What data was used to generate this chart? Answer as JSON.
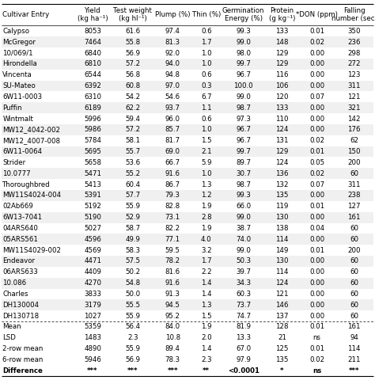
{
  "headers": [
    "Cultivar Entry",
    "Yield\n(kg ha⁻¹)",
    "Test weight\n(kg hl⁻¹)",
    "Plump (%)",
    "Thin (%)",
    "Germination\nEnergy (%)",
    "Protein\n(g kg⁻¹)",
    "*DON (ppm)",
    "Falling\nnumber (sec)"
  ],
  "rows": [
    [
      "Calypso",
      "8053",
      "61.6",
      "97.4",
      "0.6",
      "99.3",
      "133",
      "0.01",
      "350"
    ],
    [
      "McGregor",
      "7464",
      "55.8",
      "81.3",
      "1.7",
      "99.0",
      "148",
      "0.02",
      "236"
    ],
    [
      "10/069/1",
      "6840",
      "56.9",
      "92.0",
      "1.0",
      "98.0",
      "129",
      "0.00",
      "298"
    ],
    [
      "Hirondella",
      "6810",
      "57.2",
      "94.0",
      "1.0",
      "99.7",
      "129",
      "0.00",
      "272"
    ],
    [
      "Vincenta",
      "6544",
      "56.8",
      "94.8",
      "0.6",
      "96.7",
      "116",
      "0.00",
      "123"
    ],
    [
      "SU-Mateo",
      "6392",
      "60.8",
      "97.0",
      "0.3",
      "100.0",
      "106",
      "0.00",
      "311"
    ],
    [
      "6W11-0003",
      "6310",
      "54.2",
      "54.6",
      "6.7",
      "99.0",
      "120",
      "0.07",
      "121"
    ],
    [
      "Puffin",
      "6189",
      "62.2",
      "93.7",
      "1.1",
      "98.7",
      "133",
      "0.00",
      "321"
    ],
    [
      "Wintmalt",
      "5996",
      "59.4",
      "96.0",
      "0.6",
      "97.3",
      "110",
      "0.00",
      "142"
    ],
    [
      "MW12_4042-002",
      "5986",
      "57.2",
      "85.7",
      "1.0",
      "96.7",
      "124",
      "0.00",
      "176"
    ],
    [
      "MW12_4007-008",
      "5784",
      "58.1",
      "81.7",
      "1.5",
      "96.7",
      "131",
      "0.02",
      "62"
    ],
    [
      "6W11-0064",
      "5695",
      "55.7",
      "69.0",
      "2.1",
      "99.7",
      "129",
      "0.01",
      "150"
    ],
    [
      "Strider",
      "5658",
      "53.6",
      "66.7",
      "5.9",
      "89.7",
      "124",
      "0.05",
      "200"
    ],
    [
      "10.0777",
      "5471",
      "55.2",
      "91.6",
      "1.0",
      "30.7",
      "136",
      "0.02",
      "60"
    ],
    [
      "Thoroughbred",
      "5413",
      "60.4",
      "86.7",
      "1.3",
      "98.7",
      "132",
      "0.07",
      "311"
    ],
    [
      "MW11S4024-004",
      "5391",
      "57.7",
      "79.3",
      "1.2",
      "99.3",
      "135",
      "0.00",
      "238"
    ],
    [
      "02Ab669",
      "5192",
      "55.9",
      "82.8",
      "1.9",
      "66.0",
      "119",
      "0.01",
      "127"
    ],
    [
      "6W13-7041",
      "5190",
      "52.9",
      "73.1",
      "2.8",
      "99.0",
      "130",
      "0.00",
      "161"
    ],
    [
      "04ARS640",
      "5027",
      "58.7",
      "82.2",
      "1.9",
      "38.7",
      "138",
      "0.04",
      "60"
    ],
    [
      "05ARS561",
      "4596",
      "49.9",
      "77.1",
      "4.0",
      "74.0",
      "114",
      "0.00",
      "60"
    ],
    [
      "MW11S4029-002",
      "4569",
      "58.3",
      "59.5",
      "3.2",
      "99.0",
      "149",
      "0.01",
      "200"
    ],
    [
      "Endeavor",
      "4471",
      "57.5",
      "78.2",
      "1.7",
      "50.3",
      "130",
      "0.00",
      "60"
    ],
    [
      "06ARS633",
      "4409",
      "50.2",
      "81.6",
      "2.2",
      "39.7",
      "114",
      "0.00",
      "60"
    ],
    [
      "10.086",
      "4270",
      "54.8",
      "91.6",
      "1.4",
      "34.3",
      "124",
      "0.00",
      "60"
    ],
    [
      "Charles",
      "3833",
      "50.0",
      "91.3",
      "1.4",
      "60.3",
      "121",
      "0.00",
      "60"
    ],
    [
      "DH130004",
      "3179",
      "55.5",
      "94.5",
      "1.3",
      "73.7",
      "146",
      "0.00",
      "60"
    ],
    [
      "DH130718",
      "1027",
      "55.9",
      "95.2",
      "1.5",
      "74.7",
      "137",
      "0.00",
      "60"
    ]
  ],
  "summary_rows": [
    [
      "Mean",
      "5359",
      "56.4",
      "84.0",
      "1.9",
      "81.9",
      "128",
      "0.01",
      "161"
    ],
    [
      "LSD",
      "1483",
      "2.3",
      "10.8",
      "2.0",
      "13.3",
      "21",
      "ns",
      "94"
    ],
    [
      "2-row mean",
      "4890",
      "55.9",
      "89.4",
      "1.4",
      "67.0",
      "125",
      "0.01",
      "114"
    ],
    [
      "6-row mean",
      "5946",
      "56.9",
      "78.3",
      "2.3",
      "97.9",
      "135",
      "0.02",
      "211"
    ],
    [
      "Difference",
      "***",
      "***",
      "***",
      "**",
      "<0.0001",
      "*",
      "ns",
      "***"
    ]
  ],
  "font_size": 6.2,
  "header_font_size": 6.2
}
